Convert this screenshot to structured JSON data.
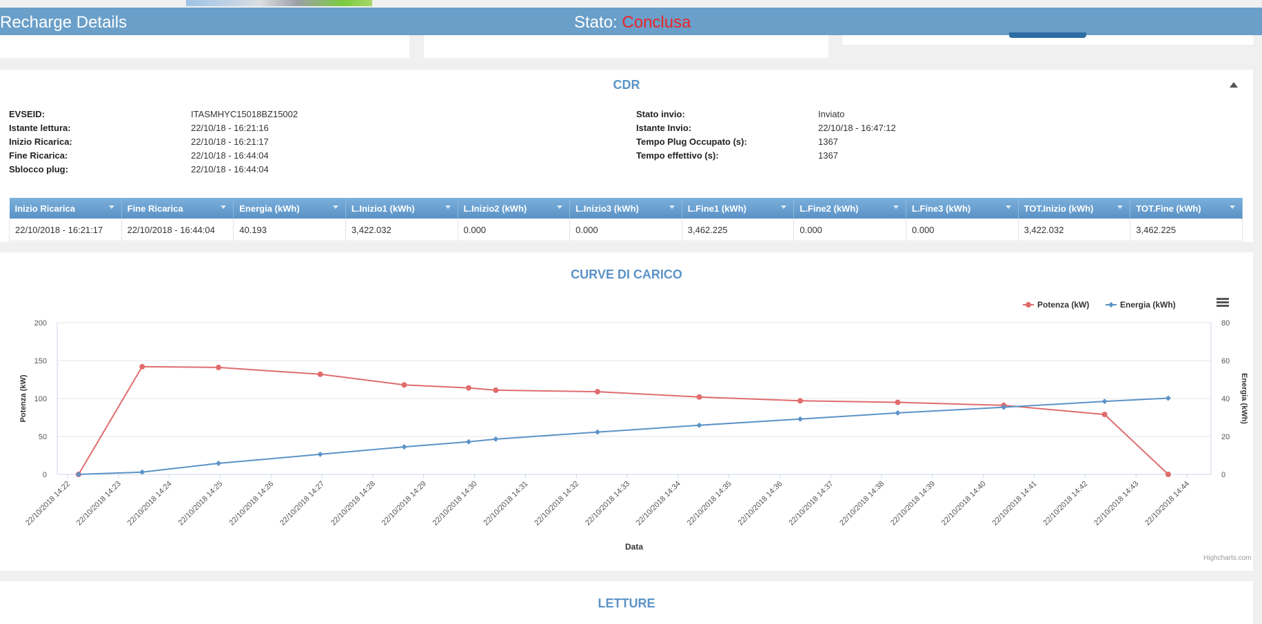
{
  "header": {
    "title": "Recharge Details",
    "status_label": "Stato:",
    "status_value": "Conclusa"
  },
  "cdr": {
    "title": "CDR",
    "left_fields": [
      {
        "label": "EVSEID:",
        "value": "ITASMHYC15018BZ15002"
      },
      {
        "label": "Istante lettura:",
        "value": "22/10/18 - 16:21:16"
      },
      {
        "label": "Inizio Ricarica:",
        "value": "22/10/18 - 16:21:17"
      },
      {
        "label": "Fine Ricarica:",
        "value": "22/10/18 - 16:44:04"
      },
      {
        "label": "Sblocco plug:",
        "value": "22/10/18 - 16:44:04"
      }
    ],
    "right_fields": [
      {
        "label": "Stato invio:",
        "value": "Inviato"
      },
      {
        "label": "Istante Invio:",
        "value": "22/10/18 - 16:47:12"
      },
      {
        "label": "Tempo Plug Occupato (s):",
        "value": "1367"
      },
      {
        "label": "Tempo effettivo (s):",
        "value": "1367"
      }
    ],
    "table": {
      "columns": [
        "Inizio Ricarica",
        "Fine Ricarica",
        "Energia (kWh)",
        "L.Inizio1 (kWh)",
        "L.Inizio2 (kWh)",
        "L.Inizio3 (kWh)",
        "L.Fine1 (kWh)",
        "L.Fine2 (kWh)",
        "L.Fine3 (kWh)",
        "TOT.Inizio (kWh)",
        "TOT.Fine (kWh)"
      ],
      "rows": [
        [
          "22/10/2018 - 16:21:17",
          "22/10/2018 - 16:44:04",
          "40.193",
          "3,422.032",
          "0.000",
          "0.000",
          "3,462.225",
          "0.000",
          "0.000",
          "3,422.032",
          "3,462.225"
        ]
      ]
    }
  },
  "curves": {
    "title": "CURVE DI CARICO",
    "credits": "Highcharts.com"
  },
  "letture": {
    "title": "LETTURE"
  },
  "colors": {
    "potenza": "#e06c6c",
    "energia": "#5b93c7",
    "header": "#6a9fc9",
    "status": "#e8262b"
  },
  "chart_data": {
    "type": "line",
    "xlabel": "Data",
    "ylabel_left": "Potenza (kW)",
    "ylabel_right": "Energia (kWh)",
    "ylim_left": [
      0,
      200
    ],
    "ylim_right": [
      0,
      80
    ],
    "yticks_left": [
      "0",
      "50",
      "100",
      "150",
      "200"
    ],
    "yticks_right": [
      "0",
      "20",
      "40",
      "60",
      "80"
    ],
    "grid": true,
    "legend_position": "top-right",
    "xlim_minutes": [
      "14:22",
      "14:44"
    ],
    "x_tick_labels": [
      "22/10/2018 14:22",
      "22/10/2018 14:23",
      "22/10/2018 14:24",
      "22/10/2018 14:25",
      "22/10/2018 14:26",
      "22/10/2018 14:27",
      "22/10/2018 14:28",
      "22/10/2018 14:29",
      "22/10/2018 14:30",
      "22/10/2018 14:31",
      "22/10/2018 14:32",
      "22/10/2018 14:33",
      "22/10/2018 14:34",
      "22/10/2018 14:35",
      "22/10/2018 14:36",
      "22/10/2018 14:37",
      "22/10/2018 14:38",
      "22/10/2018 14:39",
      "22/10/2018 14:40",
      "22/10/2018 14:41",
      "22/10/2018 14:42",
      "22/10/2018 14:43",
      "22/10/2018 14:44"
    ],
    "x": [
      "14:22:13",
      "14:23:28",
      "14:24:58",
      "14:26:58",
      "14:28:37",
      "14:29:53",
      "14:30:25",
      "14:32:25",
      "14:34:25",
      "14:36:24",
      "14:38:19",
      "14:40:24",
      "14:42:23",
      "14:43:38"
    ],
    "series": [
      {
        "name": "Potenza (kW)",
        "axis": "left",
        "values": [
          0,
          142,
          141,
          132,
          118,
          114,
          111,
          109,
          102,
          97,
          95,
          91,
          79,
          0
        ]
      },
      {
        "name": "Energia (kWh)",
        "axis": "right",
        "values": [
          0,
          1.2,
          5.8,
          10.6,
          14.5,
          17.2,
          18.6,
          22.3,
          25.9,
          29.2,
          32.4,
          35.4,
          38.5,
          40.2
        ]
      }
    ]
  }
}
